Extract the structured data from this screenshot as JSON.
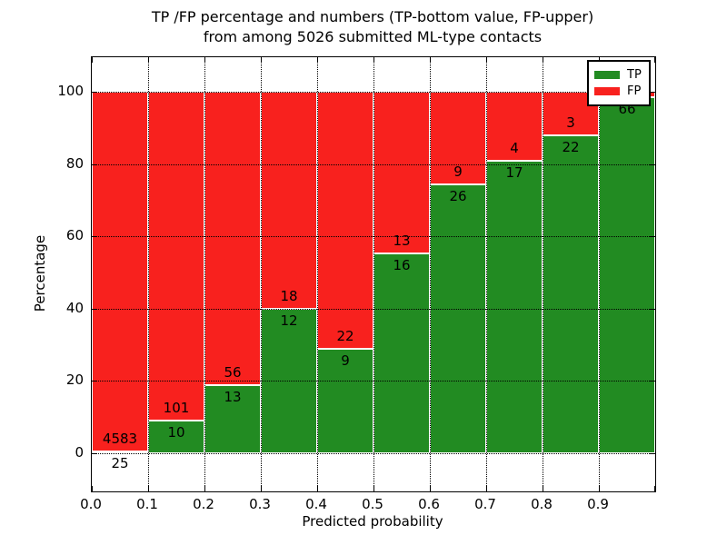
{
  "chart_data": {
    "type": "bar",
    "stacked": true,
    "title": "TP /FP percentage and numbers (TP-bottom value, FP-upper)\nfrom among 5026 submitted ML-type contacts",
    "xlabel": "Predicted probability",
    "ylabel": "Percentage",
    "xlim": [
      0.0,
      1.0
    ],
    "ylim_shown_ticks": [
      0,
      20,
      40,
      60,
      80,
      100
    ],
    "grid": true,
    "legend_position": "upper right",
    "x_tick_labels": [
      "0.0",
      "0.1",
      "0.2",
      "0.3",
      "0.4",
      "0.5",
      "0.6",
      "0.7",
      "0.8",
      "0.9"
    ],
    "y_tick_labels": [
      "0",
      "20",
      "40",
      "60",
      "80",
      "100"
    ],
    "y_tick_values": [
      0,
      20,
      40,
      60,
      80,
      100
    ],
    "series": [
      {
        "name": "TP",
        "color": "#228b22"
      },
      {
        "name": "FP",
        "color": "#f8211e"
      }
    ],
    "bins": [
      {
        "x_start": "0.0",
        "tp_count": 25,
        "fp_count": 4583,
        "tp_pct": 0.54
      },
      {
        "x_start": "0.1",
        "tp_count": 10,
        "fp_count": 101,
        "tp_pct": 9.0
      },
      {
        "x_start": "0.2",
        "tp_count": 13,
        "fp_count": 56,
        "tp_pct": 18.8
      },
      {
        "x_start": "0.3",
        "tp_count": 12,
        "fp_count": 18,
        "tp_pct": 40.0
      },
      {
        "x_start": "0.4",
        "tp_count": 9,
        "fp_count": 22,
        "tp_pct": 29.0
      },
      {
        "x_start": "0.5",
        "tp_count": 16,
        "fp_count": 13,
        "tp_pct": 55.2
      },
      {
        "x_start": "0.6",
        "tp_count": 26,
        "fp_count": 9,
        "tp_pct": 74.3
      },
      {
        "x_start": "0.7",
        "tp_count": 17,
        "fp_count": 4,
        "tp_pct": 81.0
      },
      {
        "x_start": "0.8",
        "tp_count": 22,
        "fp_count": 3,
        "tp_pct": 88.0
      },
      {
        "x_start": "0.9",
        "tp_count": 66,
        "fp_count": null,
        "tp_pct": 98.5
      }
    ]
  }
}
